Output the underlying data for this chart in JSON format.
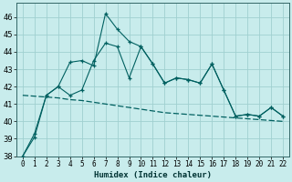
{
  "xlabel": "Humidex (Indice chaleur)",
  "background_color": "#c8ecec",
  "grid_color": "#a0d0d0",
  "line_color": "#006060",
  "xlim": [
    -0.5,
    22.5
  ],
  "ylim": [
    38,
    46.8
  ],
  "yticks": [
    38,
    39,
    40,
    41,
    42,
    43,
    44,
    45,
    46
  ],
  "xticks": [
    0,
    1,
    2,
    3,
    4,
    5,
    6,
    7,
    8,
    9,
    10,
    11,
    12,
    13,
    14,
    15,
    16,
    17,
    18,
    19,
    20,
    21,
    22
  ],
  "s1_x": [
    0,
    1,
    2,
    3,
    4,
    5,
    6,
    7,
    8,
    9,
    10,
    11,
    12,
    13,
    14,
    15,
    16,
    17,
    18,
    19,
    20,
    21,
    22
  ],
  "s1_y": [
    38.0,
    39.3,
    41.5,
    42.0,
    43.4,
    43.5,
    43.2,
    46.2,
    45.3,
    44.6,
    44.3,
    43.3,
    42.2,
    42.5,
    42.4,
    42.2,
    43.3,
    41.8,
    40.3,
    40.4,
    40.3,
    40.8,
    40.3
  ],
  "s2_x": [
    0,
    1,
    2,
    3,
    4,
    5,
    6,
    7,
    8,
    9,
    10,
    11,
    12,
    13,
    14,
    15,
    16,
    17,
    18,
    19,
    20,
    21,
    22
  ],
  "s2_y": [
    38.0,
    39.1,
    41.5,
    42.0,
    41.5,
    41.8,
    43.5,
    44.5,
    44.3,
    42.5,
    44.3,
    43.3,
    42.2,
    42.5,
    42.4,
    42.2,
    43.3,
    41.8,
    40.3,
    40.4,
    40.3,
    40.8,
    40.3
  ],
  "s3_x": [
    0,
    1,
    2,
    3,
    4,
    5,
    6,
    7,
    8,
    9,
    10,
    11,
    12,
    13,
    14,
    15,
    16,
    17,
    18,
    19,
    20,
    21,
    22
  ],
  "s3_y": [
    41.5,
    41.45,
    41.4,
    41.35,
    41.25,
    41.2,
    41.1,
    41.0,
    40.9,
    40.8,
    40.7,
    40.6,
    40.5,
    40.45,
    40.4,
    40.35,
    40.3,
    40.25,
    40.2,
    40.15,
    40.1,
    40.05,
    40.0
  ]
}
